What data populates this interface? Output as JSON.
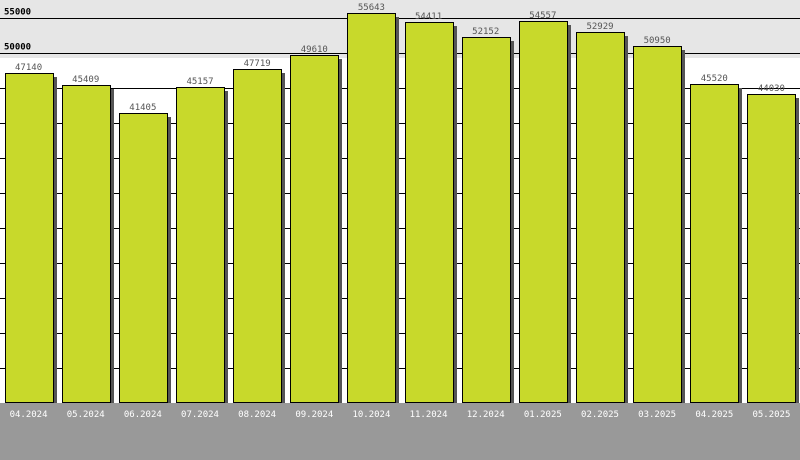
{
  "chart_data": {
    "type": "bar",
    "categories": [
      "04.2024",
      "05.2024",
      "06.2024",
      "07.2024",
      "08.2024",
      "09.2024",
      "10.2024",
      "11.2024",
      "12.2024",
      "01.2025",
      "02.2025",
      "03.2025",
      "04.2025",
      "05.2025"
    ],
    "values": [
      47140,
      45409,
      41405,
      45157,
      47719,
      49610,
      55643,
      54411,
      52152,
      54557,
      52929,
      50950,
      45520,
      44030
    ],
    "value_labels": [
      "47140",
      "45409",
      "41405",
      "45157",
      "47719",
      "49610",
      "55643",
      "54411",
      "52152",
      "54557",
      "52929",
      "50950",
      "45520",
      "44030"
    ],
    "y_tick_labels": [
      {
        "value": 55000,
        "label": "55000"
      },
      {
        "value": 50000,
        "label": "50000"
      }
    ],
    "ylim": [
      0,
      57500
    ],
    "grid": true,
    "title": "",
    "xlabel": "",
    "ylabel": "",
    "colors": {
      "bar": "#c8d92b",
      "bar_outline": "#000000",
      "shadow": "#555555",
      "plot_bg": "#ffffff",
      "band": "#e6e6e6",
      "axis_band": "#999999"
    }
  }
}
